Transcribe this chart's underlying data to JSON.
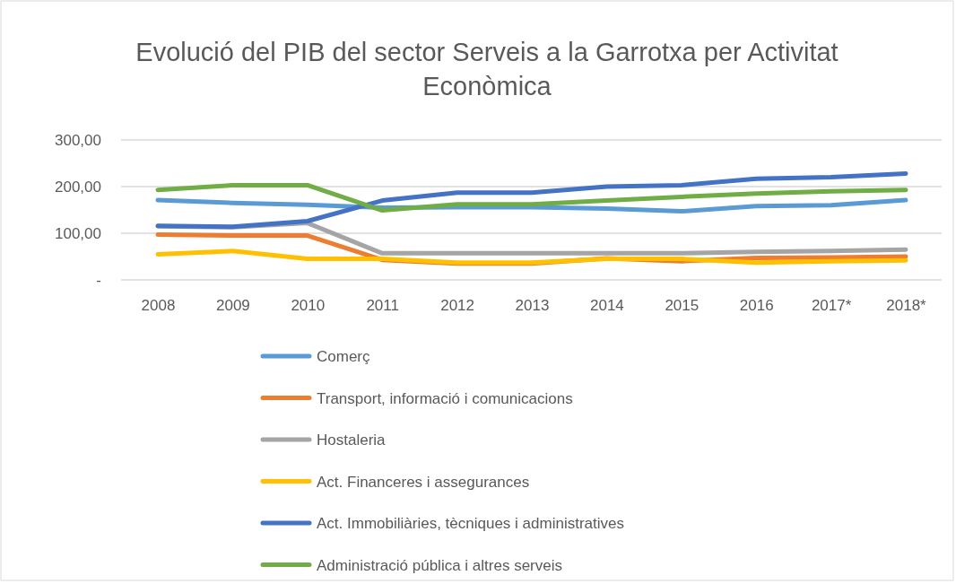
{
  "chart_data": {
    "type": "line",
    "title": "Evolució del PIB del sector Serveis a la Garrotxa per Activitat Econòmica",
    "categories": [
      "2008",
      "2009",
      "2010",
      "2011",
      "2012",
      "2013",
      "2014",
      "2015",
      "2016",
      "2017*",
      "2018*"
    ],
    "series": [
      {
        "name": "Comerç",
        "color": "#5b9bd5",
        "values": [
          171,
          165,
          161,
          155,
          156,
          156,
          153,
          147,
          158,
          160,
          171
        ]
      },
      {
        "name": "Transport, informació i comunicacions",
        "color": "#ed7d31",
        "values": [
          97,
          95,
          95,
          43,
          35,
          35,
          46,
          40,
          47,
          48,
          50
        ]
      },
      {
        "name": "Hostaleria",
        "color": "#a5a5a5",
        "values": [
          115,
          113,
          122,
          57,
          57,
          57,
          57,
          57,
          60,
          62,
          65
        ]
      },
      {
        "name": "Act. Financeres i assegurances",
        "color": "#ffc000",
        "values": [
          55,
          62,
          45,
          45,
          37,
          37,
          45,
          45,
          37,
          40,
          42
        ]
      },
      {
        "name": "Act. Immobiliàries, tècniques i administratives",
        "color": "#4472c4",
        "values": [
          116,
          114,
          126,
          170,
          187,
          187,
          200,
          203,
          217,
          220,
          228
        ]
      },
      {
        "name": "Administració pública i altres serveis",
        "color": "#70ad47",
        "values": [
          193,
          203,
          203,
          149,
          162,
          162,
          170,
          178,
          185,
          190,
          193
        ]
      }
    ],
    "ylim": [
      0,
      300
    ],
    "yticks": [
      {
        "value": 0,
        "label": "-"
      },
      {
        "value": 100,
        "label": "100,00"
      },
      {
        "value": 200,
        "label": "200,00"
      },
      {
        "value": 300,
        "label": "300,00"
      }
    ],
    "grid": "y",
    "legend": "bottom",
    "marker": "none",
    "line_style": "solid"
  }
}
